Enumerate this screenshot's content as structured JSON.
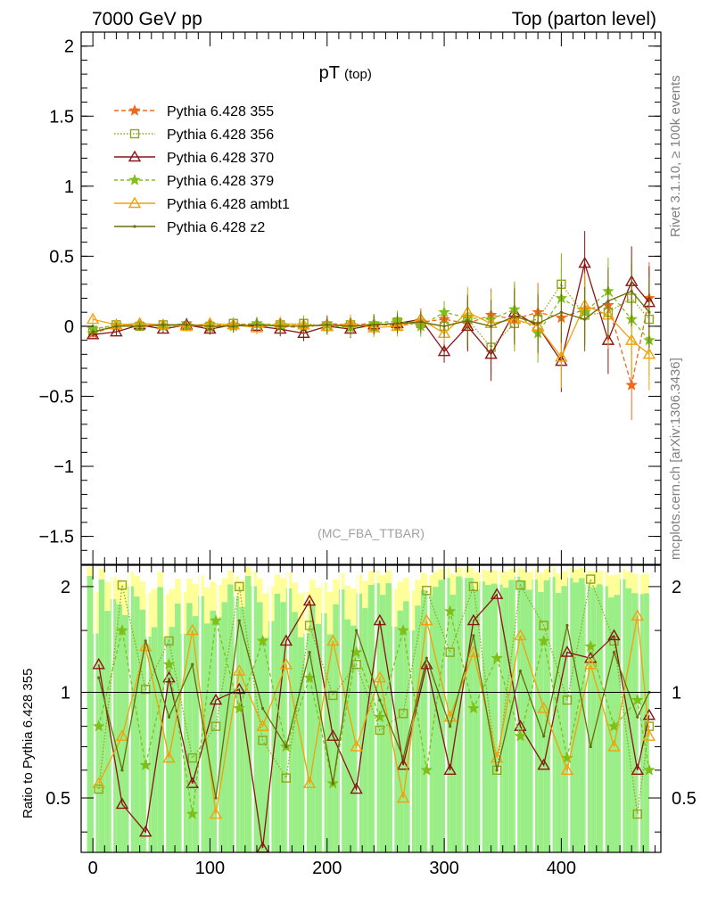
{
  "header": {
    "left": "7000 GeV pp",
    "right": "Top (parton level)"
  },
  "side_labels": {
    "rivet": "Rivet 3.1.10, ≥ 100k events",
    "mcplots": "mcplots.cern.ch [arXiv:1306.3436]"
  },
  "analysis_id": "(MC_FBA_TTBAR)",
  "chart_data": [
    {
      "panel": "main",
      "type": "line",
      "title": "pT",
      "title_sub": "(top)",
      "xlim": [
        -10,
        485
      ],
      "ylim": [
        -1.7,
        2.1
      ],
      "y_ticks": [
        "−1.5",
        "−1",
        "−0.5",
        "0",
        "0.5",
        "1",
        "1.5",
        "2"
      ],
      "y_tick_values": [
        -1.5,
        -1,
        -0.5,
        0,
        0.5,
        1,
        1.5,
        2
      ],
      "grid": false,
      "legend_position": "top-left",
      "x": [
        0,
        20,
        40,
        60,
        80,
        100,
        120,
        140,
        160,
        180,
        200,
        220,
        240,
        260,
        280,
        300,
        320,
        340,
        360,
        380,
        400,
        420,
        440,
        460,
        475
      ],
      "series": [
        {
          "name": "Pythia 6.428 355",
          "color": "#ee6a1e",
          "dash": "5,3",
          "marker": "star",
          "values": [
            -0.05,
            0.0,
            0.01,
            0.0,
            0.02,
            -0.01,
            0.01,
            0.02,
            0.0,
            -0.01,
            0.02,
            0.01,
            0.02,
            0.0,
            0.03,
            0.05,
            0.02,
            0.08,
            0.05,
            0.1,
            0.06,
            0.12,
            0.15,
            -0.42,
            0.2
          ]
        },
        {
          "name": "Pythia 6.428 356",
          "color": "#8fa51a",
          "dash": "1.5,2",
          "marker": "square",
          "values": [
            -0.03,
            0.01,
            0.0,
            0.01,
            0.0,
            0.0,
            0.02,
            0.0,
            0.01,
            0.02,
            0.0,
            0.01,
            0.0,
            0.03,
            0.02,
            0.0,
            0.05,
            -0.15,
            0.02,
            0.05,
            0.3,
            0.08,
            0.1,
            0.2,
            0.05
          ]
        },
        {
          "name": "Pythia 6.428 370",
          "color": "#8b1414",
          "dash": "",
          "marker": "triangle",
          "values": [
            -0.06,
            -0.04,
            0.01,
            -0.02,
            0.01,
            -0.02,
            0.01,
            0.0,
            -0.02,
            -0.05,
            0.0,
            -0.02,
            0.01,
            0.02,
            0.05,
            -0.18,
            0.0,
            -0.2,
            0.1,
            0.0,
            -0.25,
            0.45,
            -0.1,
            0.32,
            0.17
          ]
        },
        {
          "name": "Pythia 6.428 379",
          "color": "#7fbf1a",
          "dash": "4,3",
          "marker": "star",
          "values": [
            -0.02,
            0.01,
            0.01,
            0.0,
            0.0,
            0.01,
            0.0,
            0.02,
            0.01,
            0.0,
            0.01,
            -0.01,
            0.02,
            0.04,
            0.0,
            0.1,
            0.06,
            0.05,
            0.12,
            -0.05,
            0.2,
            0.1,
            0.25,
            0.05,
            -0.1
          ]
        },
        {
          "name": "Pythia 6.428 ambt1",
          "color": "#f2a10a",
          "dash": "",
          "marker": "triangle",
          "values": [
            0.05,
            0.01,
            0.02,
            0.01,
            0.0,
            0.02,
            0.01,
            -0.01,
            0.02,
            0.01,
            0.0,
            0.02,
            -0.01,
            0.0,
            0.05,
            -0.05,
            0.1,
            0.02,
            0.05,
            0.0,
            -0.22,
            0.15,
            0.08,
            -0.1,
            -0.2
          ]
        },
        {
          "name": "Pythia 6.428 z2",
          "color": "#6b6b0a",
          "dash": "",
          "marker": "dot",
          "values": [
            -0.04,
            0.0,
            0.0,
            0.01,
            0.01,
            0.0,
            0.0,
            0.01,
            0.0,
            0.0,
            0.01,
            0.0,
            0.01,
            0.02,
            0.03,
            0.0,
            0.04,
            0.0,
            0.07,
            0.02,
            0.1,
            0.05,
            0.18,
            0.25,
            0.1
          ]
        }
      ]
    },
    {
      "panel": "ratio",
      "type": "line",
      "ylabel": "Ratio to Pythia 6.428 355",
      "xlim": [
        -10,
        485
      ],
      "ylim": [
        0.35,
        2.3
      ],
      "x_ticks": [
        "0",
        "100",
        "200",
        "300",
        "400"
      ],
      "x_tick_values": [
        0,
        100,
        200,
        300,
        400
      ],
      "y_ticks": [
        "0.5",
        "1",
        "2"
      ],
      "y_tick_values": [
        0.5,
        1,
        2
      ],
      "log_y": true,
      "reference_line": 1,
      "band_colors": {
        "outer": "#ffff99",
        "inner": "#99ee88"
      },
      "x": [
        5,
        25,
        45,
        65,
        85,
        105,
        125,
        145,
        165,
        185,
        205,
        225,
        245,
        265,
        285,
        305,
        325,
        345,
        365,
        385,
        405,
        425,
        445,
        465,
        475
      ],
      "series": [
        {
          "name": "Pythia 6.428 356",
          "color": "#8fa51a",
          "dash": "1.5,2",
          "marker": "square",
          "values": [
            0.53,
            2.02,
            1.02,
            1.4,
            0.65,
            0.8,
            2.0,
            0.73,
            0.57,
            1.55,
            0.98,
            1.2,
            0.78,
            0.87,
            1.95,
            1.3,
            2.0,
            0.6,
            2.02,
            1.55,
            0.95,
            2.1,
            1.4,
            0.45,
            0.8
          ]
        },
        {
          "name": "Pythia 6.428 370",
          "color": "#8b1414",
          "dash": "",
          "marker": "triangle",
          "values": [
            1.2,
            0.48,
            0.4,
            1.1,
            0.55,
            0.95,
            1.02,
            0.36,
            1.4,
            1.82,
            0.75,
            0.53,
            1.6,
            0.62,
            1.2,
            0.6,
            1.6,
            1.9,
            0.8,
            0.62,
            1.3,
            1.25,
            1.45,
            0.6,
            0.86
          ]
        },
        {
          "name": "Pythia 6.428 379",
          "color": "#7fbf1a",
          "dash": "4,3",
          "marker": "star",
          "values": [
            0.8,
            1.5,
            0.62,
            1.2,
            0.45,
            1.6,
            0.9,
            1.4,
            0.7,
            1.1,
            0.55,
            1.3,
            0.85,
            1.5,
            0.6,
            1.7,
            0.9,
            1.25,
            0.75,
            1.4,
            0.65,
            1.35,
            0.8,
            0.95,
            0.6
          ]
        },
        {
          "name": "Pythia 6.428 ambt1",
          "color": "#f2a10a",
          "dash": "",
          "marker": "triangle",
          "values": [
            0.55,
            0.75,
            1.35,
            0.65,
            1.5,
            0.45,
            1.15,
            0.8,
            1.2,
            0.55,
            1.4,
            0.7,
            1.1,
            0.5,
            1.6,
            0.85,
            1.3,
            0.65,
            1.45,
            0.9,
            0.6,
            1.2,
            0.7,
            1.65,
            0.75
          ]
        },
        {
          "name": "Pythia 6.428 z2",
          "color": "#6b6b0a",
          "dash": "",
          "marker": "dot",
          "values": [
            1.1,
            0.6,
            1.4,
            0.85,
            1.2,
            0.5,
            1.6,
            0.9,
            0.7,
            1.3,
            0.55,
            1.5,
            0.95,
            0.65,
            1.25,
            0.8,
            1.45,
            0.6,
            1.15,
            0.75,
            1.55,
            0.7,
            1.3,
            0.85,
            1.0
          ]
        }
      ]
    }
  ]
}
